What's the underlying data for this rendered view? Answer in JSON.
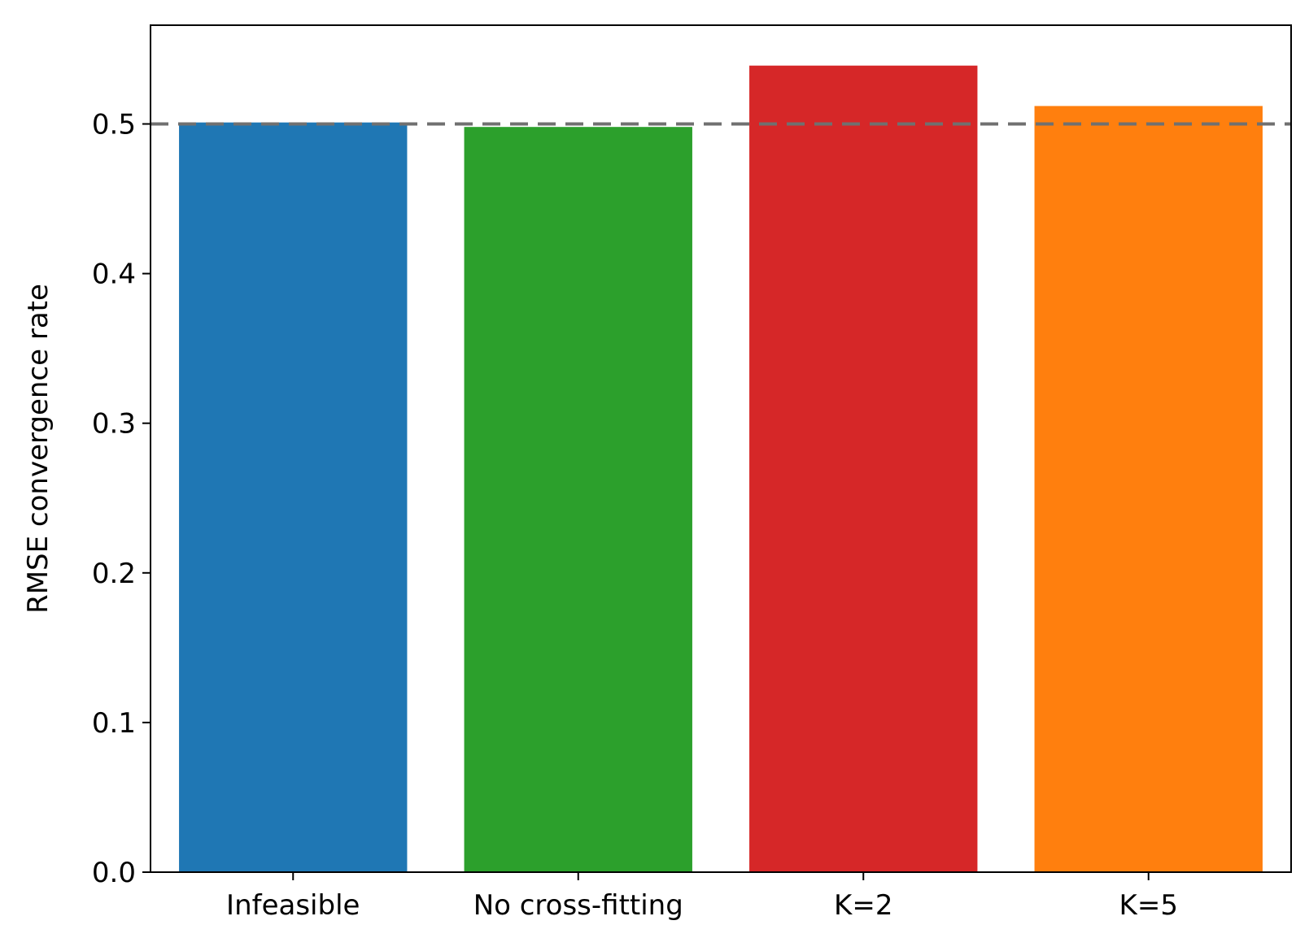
{
  "chart_data": {
    "type": "bar",
    "categories": [
      "Infeasible",
      "No cross-fitting",
      "K=2",
      "K=5"
    ],
    "values": [
      0.501,
      0.498,
      0.539,
      0.512
    ],
    "bar_colors": [
      "#1f77b4",
      "#2ca02c",
      "#d62728",
      "#ff7f0e"
    ],
    "title": "",
    "xlabel": "",
    "ylabel": "RMSE convergence rate",
    "ylim": [
      0,
      0.566
    ],
    "yticks": [
      0.0,
      0.1,
      0.2,
      0.3,
      0.4,
      0.5
    ],
    "ytick_labels": [
      "0.0",
      "0.1",
      "0.2",
      "0.3",
      "0.4",
      "0.5"
    ],
    "reference_line": {
      "y": 0.5,
      "style": "dashed",
      "color": "#707070"
    },
    "grid": false,
    "legend": "none"
  }
}
